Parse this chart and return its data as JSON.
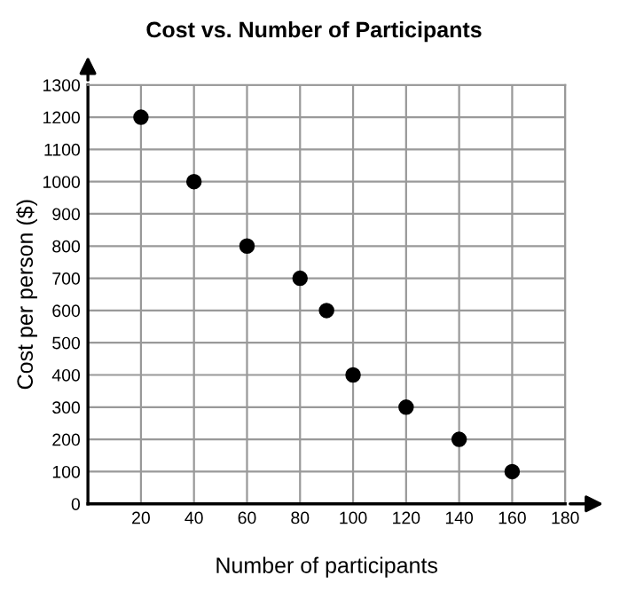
{
  "chart_data": {
    "type": "scatter",
    "title": "Cost vs. Number of Participants",
    "xlabel": "Number of participants",
    "ylabel": "Cost per person ($)",
    "x": [
      20,
      40,
      60,
      80,
      90,
      100,
      120,
      140,
      160
    ],
    "series": [
      {
        "color": "#000000",
        "values": [
          1200,
          1000,
          800,
          700,
          600,
          400,
          300,
          200,
          100
        ]
      }
    ],
    "xlim": [
      0,
      180
    ],
    "ylim": [
      0,
      1300
    ],
    "xticks": [
      {
        "value": 0,
        "label": null
      },
      20,
      40,
      60,
      80,
      100,
      120,
      140,
      160,
      180
    ],
    "yticks": [
      0,
      100,
      200,
      300,
      400,
      500,
      600,
      700,
      800,
      900,
      1000,
      1100,
      1200,
      1300
    ],
    "grid": true,
    "marker": "circle",
    "legend": false
  }
}
